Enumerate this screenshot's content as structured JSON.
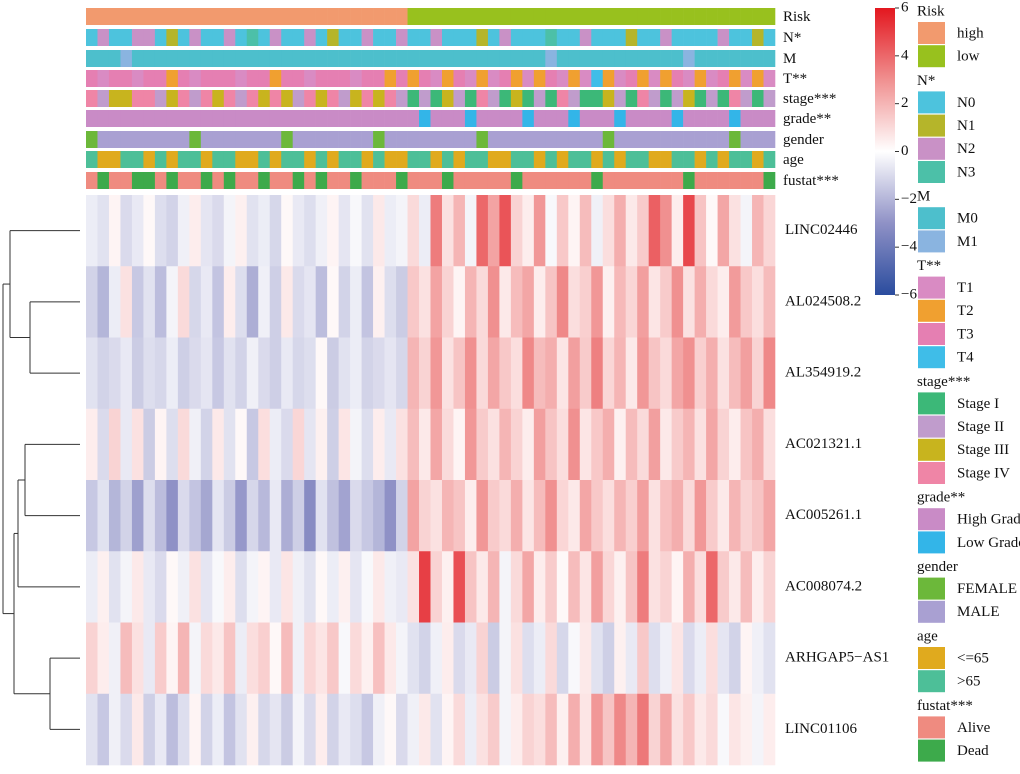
{
  "chart_data": {
    "type": "heatmap",
    "annotations": [
      {
        "name": "Risk",
        "levels": [
          {
            "label": "high",
            "color": "#f29a6e"
          },
          {
            "label": "low",
            "color": "#98c11e"
          }
        ],
        "values": [
          0,
          0,
          0,
          0,
          0,
          0,
          0,
          0,
          0,
          0,
          0,
          0,
          0,
          0,
          0,
          0,
          0,
          0,
          0,
          0,
          0,
          0,
          0,
          0,
          0,
          0,
          0,
          0,
          1,
          1,
          1,
          1,
          1,
          1,
          1,
          1,
          1,
          1,
          1,
          1,
          1,
          1,
          1,
          1,
          1,
          1,
          1,
          1,
          1,
          1,
          1,
          1,
          1,
          1,
          1,
          1,
          1,
          1,
          1,
          1
        ]
      },
      {
        "name": "N*",
        "levels": [
          {
            "label": "N0",
            "color": "#4dc3dd"
          },
          {
            "label": "N1",
            "color": "#b5b52a"
          },
          {
            "label": "N2",
            "color": "#c991c6"
          },
          {
            "label": "N3",
            "color": "#4cc0a8"
          }
        ],
        "values": [
          0,
          2,
          0,
          0,
          2,
          2,
          0,
          1,
          0,
          2,
          0,
          0,
          2,
          0,
          3,
          0,
          2,
          0,
          0,
          2,
          0,
          1,
          0,
          0,
          2,
          0,
          0,
          2,
          0,
          0,
          2,
          0,
          0,
          0,
          1,
          0,
          2,
          0,
          0,
          0,
          3,
          0,
          0,
          2,
          0,
          0,
          0,
          1,
          0,
          0,
          2,
          0,
          0,
          0,
          0,
          2,
          0,
          0,
          1,
          0
        ]
      },
      {
        "name": "M",
        "levels": [
          {
            "label": "M0",
            "color": "#4dbfcc"
          },
          {
            "label": "M1",
            "color": "#8ab4e0"
          }
        ],
        "values": [
          0,
          0,
          0,
          1,
          0,
          0,
          0,
          0,
          0,
          0,
          0,
          0,
          0,
          0,
          0,
          0,
          0,
          0,
          0,
          0,
          0,
          0,
          0,
          0,
          0,
          0,
          0,
          0,
          0,
          0,
          0,
          0,
          0,
          0,
          0,
          0,
          0,
          0,
          0,
          0,
          1,
          0,
          0,
          0,
          0,
          0,
          0,
          0,
          0,
          0,
          0,
          0,
          1,
          0,
          0,
          0,
          0,
          0,
          0,
          0
        ]
      },
      {
        "name": "T**",
        "levels": [
          {
            "label": "T1",
            "color": "#d98bc3"
          },
          {
            "label": "T2",
            "color": "#f0a030"
          },
          {
            "label": "T3",
            "color": "#e57fb2"
          },
          {
            "label": "T4",
            "color": "#3fbde8"
          }
        ],
        "values": [
          2,
          0,
          2,
          2,
          0,
          2,
          2,
          1,
          2,
          0,
          2,
          2,
          2,
          0,
          2,
          2,
          1,
          2,
          2,
          0,
          2,
          2,
          2,
          0,
          2,
          2,
          1,
          2,
          1,
          2,
          0,
          1,
          2,
          0,
          1,
          0,
          2,
          1,
          0,
          1,
          2,
          0,
          1,
          0,
          3,
          1,
          0,
          2,
          1,
          0,
          1,
          2,
          0,
          1,
          0,
          2,
          1,
          0,
          1,
          0
        ]
      },
      {
        "name": "stage***",
        "levels": [
          {
            "label": "Stage I",
            "color": "#3cb878"
          },
          {
            "label": "Stage II",
            "color": "#c09ccc"
          },
          {
            "label": "Stage III",
            "color": "#c8b41e"
          },
          {
            "label": "Stage IV",
            "color": "#ef85a6"
          }
        ],
        "values": [
          3,
          1,
          2,
          2,
          3,
          3,
          1,
          2,
          3,
          1,
          3,
          2,
          3,
          1,
          3,
          2,
          3,
          2,
          1,
          3,
          2,
          3,
          1,
          2,
          3,
          2,
          3,
          1,
          0,
          1,
          0,
          2,
          1,
          0,
          3,
          1,
          0,
          2,
          0,
          1,
          0,
          3,
          1,
          0,
          0,
          2,
          1,
          0,
          3,
          1,
          0,
          1,
          2,
          0,
          1,
          0,
          3,
          1,
          0,
          1
        ]
      },
      {
        "name": "grade**",
        "levels": [
          {
            "label": "High Grade",
            "color": "#c98bc6"
          },
          {
            "label": "Low Grade",
            "color": "#33b5e8"
          }
        ],
        "values": [
          0,
          0,
          0,
          0,
          0,
          0,
          0,
          0,
          0,
          0,
          0,
          0,
          0,
          0,
          0,
          0,
          0,
          0,
          0,
          0,
          0,
          0,
          0,
          0,
          0,
          0,
          0,
          0,
          0,
          1,
          0,
          0,
          0,
          1,
          0,
          0,
          0,
          0,
          1,
          0,
          0,
          0,
          1,
          0,
          0,
          0,
          1,
          0,
          0,
          0,
          0,
          1,
          0,
          0,
          0,
          0,
          1,
          0,
          0,
          0
        ]
      },
      {
        "name": "gender",
        "levels": [
          {
            "label": "FEMALE",
            "color": "#6cb83a"
          },
          {
            "label": "MALE",
            "color": "#a9a0d2"
          }
        ],
        "values": [
          0,
          1,
          1,
          1,
          1,
          1,
          1,
          1,
          1,
          0,
          1,
          1,
          1,
          1,
          1,
          1,
          1,
          0,
          1,
          1,
          1,
          1,
          1,
          1,
          1,
          0,
          1,
          1,
          1,
          1,
          1,
          1,
          1,
          1,
          0,
          1,
          1,
          1,
          1,
          1,
          1,
          1,
          1,
          1,
          1,
          0,
          1,
          1,
          1,
          1,
          1,
          1,
          1,
          1,
          1,
          1,
          0,
          1,
          1,
          1
        ]
      },
      {
        "name": "age",
        "levels": [
          {
            "label": "<=65",
            "color": "#e0aa1e"
          },
          {
            "label": ">65",
            "color": "#4dbf98"
          }
        ],
        "values": [
          1,
          0,
          0,
          1,
          1,
          0,
          1,
          0,
          1,
          1,
          0,
          1,
          1,
          0,
          0,
          1,
          0,
          1,
          1,
          0,
          1,
          0,
          1,
          1,
          0,
          1,
          0,
          0,
          1,
          1,
          0,
          1,
          0,
          1,
          1,
          0,
          0,
          1,
          1,
          0,
          1,
          0,
          1,
          1,
          0,
          1,
          0,
          1,
          1,
          0,
          0,
          1,
          1,
          0,
          1,
          0,
          1,
          1,
          0,
          1
        ]
      },
      {
        "name": "fustat***",
        "levels": [
          {
            "label": "Alive",
            "color": "#ef8b80"
          },
          {
            "label": "Dead",
            "color": "#3daa4b"
          }
        ],
        "values": [
          0,
          1,
          0,
          0,
          1,
          1,
          0,
          1,
          0,
          0,
          1,
          0,
          1,
          0,
          0,
          1,
          0,
          0,
          1,
          0,
          1,
          0,
          0,
          1,
          0,
          0,
          0,
          1,
          0,
          0,
          0,
          1,
          0,
          0,
          0,
          0,
          0,
          1,
          0,
          0,
          0,
          0,
          0,
          0,
          1,
          0,
          0,
          0,
          0,
          0,
          0,
          0,
          1,
          0,
          0,
          0,
          0,
          0,
          0,
          1
        ]
      }
    ],
    "rows": [
      {
        "name": "LINC02446",
        "values": [
          -0.5,
          -0.8,
          0.3,
          -1.0,
          -0.6,
          0.2,
          -0.9,
          -1.2,
          -0.4,
          0.5,
          -0.7,
          -1.0,
          -0.3,
          0.4,
          -0.8,
          -0.5,
          -1.1,
          0.2,
          -0.6,
          -0.9,
          -0.4,
          0.3,
          -0.7,
          -0.2,
          -0.8,
          0.6,
          -0.5,
          -0.3,
          1.0,
          -0.5,
          3.5,
          0.8,
          2.0,
          -0.3,
          4.0,
          2.5,
          4.5,
          1.2,
          0.5,
          2.8,
          -0.2,
          1.5,
          0.3,
          1.8,
          -0.4,
          0.9,
          2.2,
          0.6,
          1.4,
          4.2,
          3.0,
          0.5,
          4.8,
          1.6,
          0.2,
          2.4,
          0.8,
          -0.3,
          2.0,
          1.1
        ]
      },
      {
        "name": "AL024508.2",
        "values": [
          -1.2,
          -2.0,
          -0.5,
          0.8,
          -1.5,
          -0.8,
          -1.8,
          -0.3,
          1.0,
          -1.1,
          -0.6,
          -1.6,
          0.5,
          -0.9,
          -2.2,
          -0.4,
          -1.3,
          0.6,
          -1.0,
          -0.7,
          -1.8,
          0.2,
          -1.2,
          -0.5,
          -1.6,
          0.4,
          -0.9,
          -1.4,
          1.5,
          0.8,
          2.5,
          1.2,
          0.3,
          2.0,
          1.0,
          3.0,
          0.6,
          1.8,
          2.4,
          0.5,
          1.6,
          3.2,
          0.9,
          1.3,
          2.8,
          0.4,
          1.9,
          1.1,
          2.6,
          0.7,
          1.4,
          3.0,
          0.8,
          2.2,
          1.0,
          0.5,
          2.7,
          1.5,
          0.9,
          1.8
        ]
      },
      {
        "name": "AL354919.2",
        "values": [
          -0.8,
          -1.2,
          -1.0,
          -0.6,
          -1.4,
          -0.9,
          -1.1,
          -0.5,
          -1.3,
          -1.0,
          -0.7,
          -1.5,
          -0.8,
          -1.2,
          -0.4,
          -1.0,
          -1.3,
          -0.6,
          -1.1,
          -0.9,
          0.2,
          -1.4,
          -0.8,
          -0.5,
          -1.2,
          -1.0,
          -0.7,
          -1.1,
          2.0,
          1.2,
          2.8,
          0.8,
          1.6,
          3.0,
          1.0,
          2.4,
          1.5,
          0.9,
          3.2,
          1.8,
          2.2,
          0.7,
          2.6,
          1.4,
          3.4,
          1.1,
          2.0,
          0.6,
          2.8,
          1.6,
          1.0,
          2.4,
          3.0,
          1.3,
          2.2,
          0.8,
          1.8,
          2.6,
          1.2,
          3.2
        ]
      },
      {
        "name": "AC021321.1",
        "values": [
          0.5,
          -1.0,
          1.2,
          -0.6,
          0.8,
          -1.4,
          0.3,
          -0.9,
          1.0,
          -0.4,
          -1.2,
          0.6,
          -0.8,
          0.2,
          -1.5,
          0.9,
          -0.5,
          -1.0,
          1.1,
          -0.7,
          0.4,
          -1.3,
          0.7,
          -0.3,
          -0.9,
          0.5,
          -0.6,
          0.8,
          1.8,
          0.6,
          2.4,
          1.0,
          0.3,
          2.8,
          1.4,
          0.8,
          2.0,
          1.2,
          0.5,
          2.6,
          1.6,
          0.9,
          3.0,
          0.7,
          1.5,
          2.2,
          0.4,
          1.8,
          1.0,
          2.6,
          0.6,
          1.4,
          2.0,
          0.8,
          2.4,
          1.2,
          0.5,
          1.6,
          2.2,
          0.9
        ]
      },
      {
        "name": "AC005261.1",
        "values": [
          -1.5,
          -0.8,
          -2.0,
          -1.2,
          -2.6,
          -0.9,
          -1.8,
          -3.0,
          -1.0,
          -1.6,
          -2.4,
          -0.7,
          -1.4,
          -2.8,
          -1.1,
          -1.9,
          -0.6,
          -2.2,
          -1.3,
          -3.2,
          -0.8,
          -1.7,
          -2.5,
          -1.0,
          -1.5,
          -2.0,
          -3.0,
          -1.2,
          2.5,
          1.2,
          0.8,
          2.0,
          1.6,
          0.5,
          2.8,
          1.4,
          1.0,
          2.2,
          0.7,
          1.8,
          3.0,
          1.1,
          0.6,
          2.4,
          1.5,
          0.9,
          2.0,
          1.3,
          2.6,
          0.8,
          1.7,
          2.2,
          1.0,
          2.8,
          1.4,
          0.6,
          2.0,
          1.2,
          1.6,
          2.4
        ]
      },
      {
        "name": "AC008074.2",
        "values": [
          -0.5,
          0.4,
          -0.8,
          -0.3,
          0.6,
          -0.6,
          -1.0,
          0.2,
          -0.4,
          0.8,
          -0.7,
          -0.2,
          0.5,
          -0.9,
          -0.3,
          0.3,
          -0.6,
          0.7,
          -0.4,
          -0.8,
          0.2,
          -0.5,
          0.4,
          -0.7,
          -0.2,
          0.6,
          -0.4,
          -0.6,
          0.8,
          5.0,
          1.2,
          0.4,
          4.6,
          1.6,
          0.6,
          2.0,
          -0.3,
          1.0,
          2.4,
          0.5,
          1.4,
          0.2,
          1.8,
          0.7,
          2.6,
          1.1,
          0.4,
          1.6,
          3.5,
          0.8,
          1.2,
          0.3,
          2.2,
          0.9,
          4.0,
          1.4,
          0.6,
          1.8,
          0.5,
          1.2
        ]
      },
      {
        "name": "ARHGAP5−AS1",
        "values": [
          1.2,
          0.5,
          -0.4,
          1.8,
          0.8,
          -0.6,
          1.4,
          0.3,
          2.0,
          -0.3,
          1.0,
          0.6,
          1.6,
          -0.5,
          0.9,
          1.3,
          0.2,
          1.8,
          -0.4,
          1.1,
          0.7,
          1.5,
          -0.2,
          1.0,
          0.4,
          1.7,
          0.6,
          -0.3,
          -0.8,
          -1.2,
          -0.4,
          0.5,
          -1.0,
          -0.6,
          1.2,
          -1.4,
          -0.3,
          0.8,
          -0.9,
          -0.5,
          1.0,
          -1.1,
          -0.2,
          0.6,
          -0.8,
          -1.3,
          0.4,
          -0.6,
          1.5,
          -0.9,
          -0.4,
          0.7,
          -1.0,
          -0.5,
          0.9,
          -0.7,
          -1.2,
          0.3,
          -0.4,
          -0.8
        ]
      },
      {
        "name": "LINC01106",
        "values": [
          -0.8,
          -1.5,
          -0.4,
          -1.0,
          0.6,
          -1.3,
          -0.6,
          -1.8,
          -0.9,
          0.3,
          -1.2,
          -0.5,
          -1.6,
          -0.8,
          0.4,
          -1.1,
          -0.7,
          -1.4,
          -0.3,
          -1.0,
          0.5,
          -1.2,
          -0.6,
          -0.9,
          -1.5,
          -0.4,
          0.2,
          -1.0,
          -0.4,
          0.6,
          -0.8,
          0.3,
          1.0,
          -0.5,
          0.8,
          1.4,
          -0.3,
          0.5,
          1.2,
          0.9,
          1.8,
          0.4,
          2.2,
          0.7,
          2.8,
          1.6,
          3.2,
          2.0,
          3.6,
          1.2,
          2.4,
          0.8,
          1.5,
          0.6,
          1.0,
          -0.2,
          0.7,
          0.4,
          -0.3,
          0.5
        ]
      }
    ],
    "colorbar": {
      "lim": [
        -6,
        6
      ],
      "colors": [
        "#2a4c9e",
        "#8f91c6",
        "#ffffff",
        "#f09090",
        "#e3171f"
      ],
      "ticks": [
        6,
        4,
        2,
        0,
        {
          "value": -2,
          "label": "−2"
        },
        {
          "value": -4,
          "label": "−4"
        },
        {
          "value": -6,
          "label": "−6"
        }
      ]
    }
  }
}
